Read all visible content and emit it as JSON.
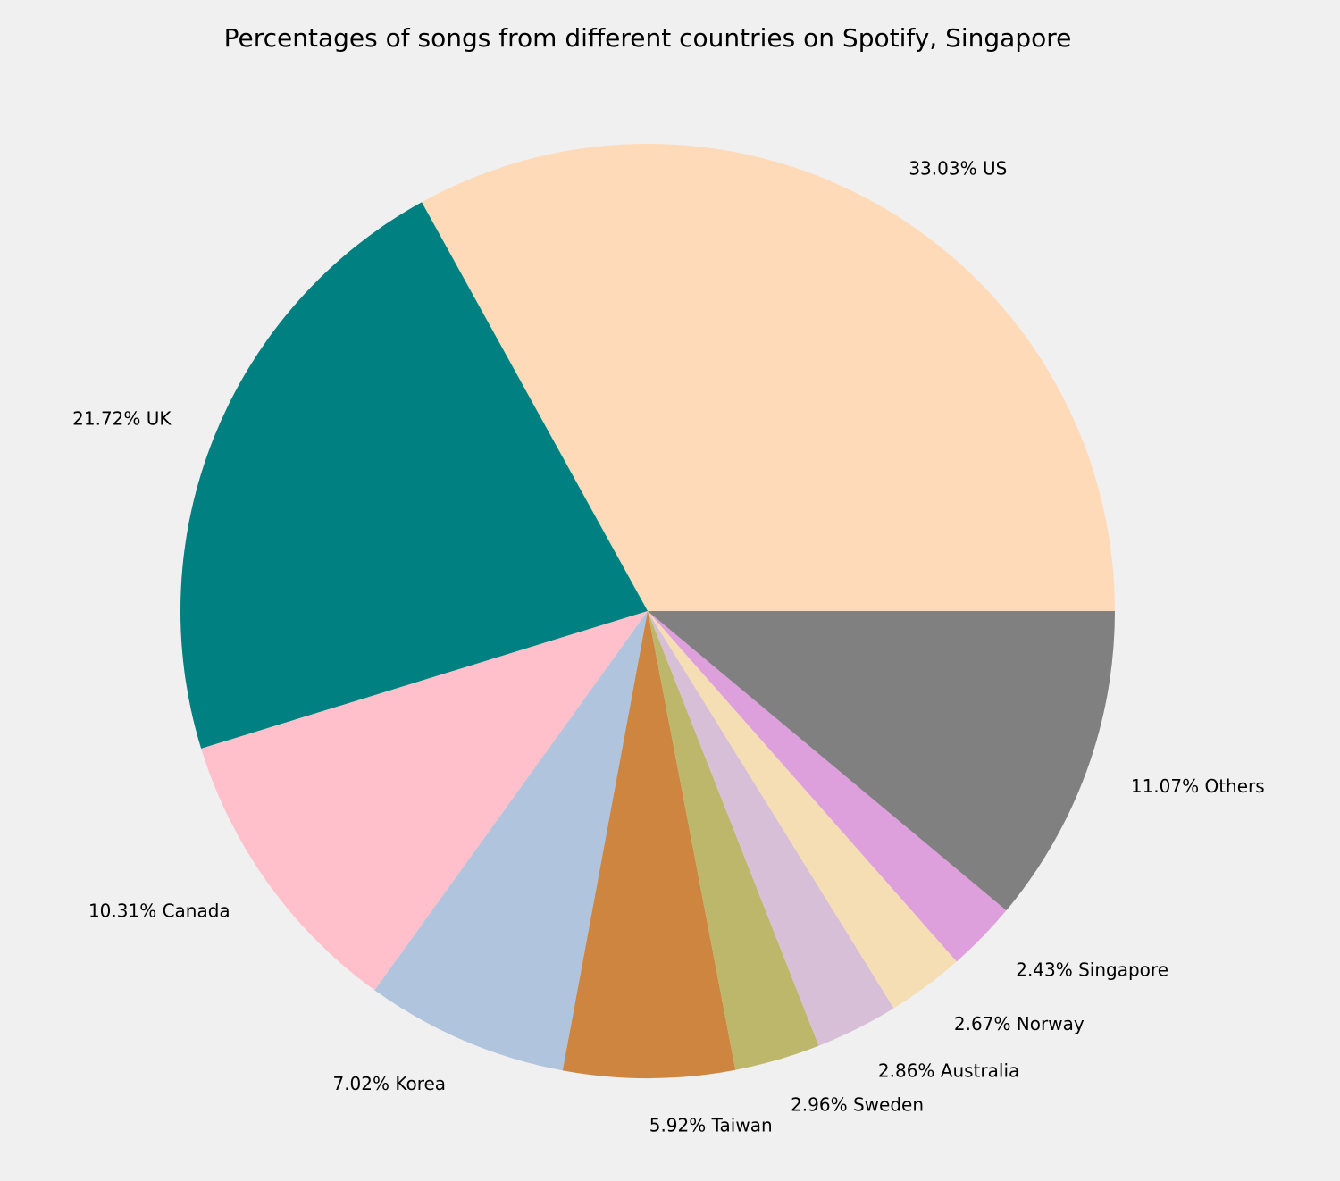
{
  "chart_data": {
    "type": "pie",
    "title": "Percentages of songs from different countries on Spotify, Singapore",
    "slices": [
      {
        "label": "US",
        "value": 33.03,
        "display": "33.03% US",
        "color": "#ffdab9"
      },
      {
        "label": "UK",
        "value": 21.72,
        "display": "21.72% UK",
        "color": "#008080"
      },
      {
        "label": "Canada",
        "value": 10.31,
        "display": "10.31% Canada",
        "color": "#ffc0cb"
      },
      {
        "label": "Korea",
        "value": 7.02,
        "display": "7.02% Korea",
        "color": "#b0c4de"
      },
      {
        "label": "Taiwan",
        "value": 5.92,
        "display": "5.92% Taiwan",
        "color": "#cd853f"
      },
      {
        "label": "Sweden",
        "value": 2.96,
        "display": "2.96% Sweden",
        "color": "#bdb76b"
      },
      {
        "label": "Australia",
        "value": 2.86,
        "display": "2.86% Australia",
        "color": "#d8bfd8"
      },
      {
        "label": "Norway",
        "value": 2.67,
        "display": "2.67% Norway",
        "color": "#f5deb3"
      },
      {
        "label": "Singapore",
        "value": 2.43,
        "display": "2.43% Singapore",
        "color": "#dda0dd"
      },
      {
        "label": "Others",
        "value": 11.07,
        "display": "11.07% Others",
        "color": "#808080"
      }
    ],
    "start_angle": "3 o'clock",
    "direction": "counterclockwise",
    "legend": "none",
    "background": "#f0f0f0"
  }
}
